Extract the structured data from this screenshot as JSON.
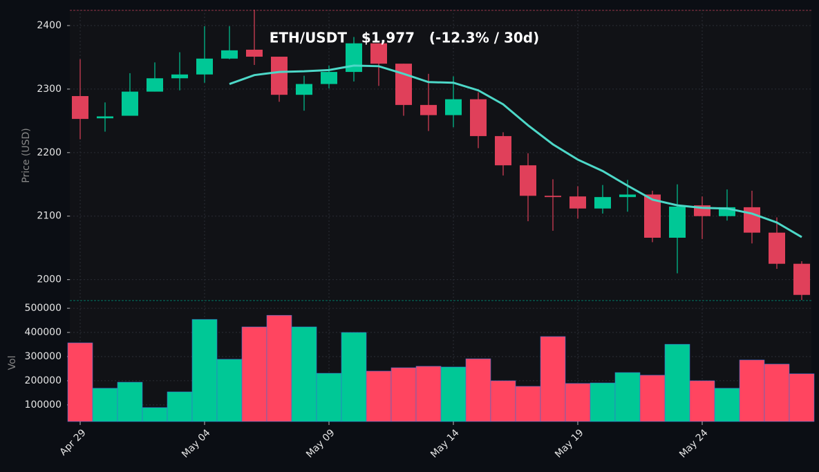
{
  "chart_data": [
    {
      "type": "candlestick",
      "title": "ETH/USDT   $1,977   (-12.3% / 30d)",
      "y_label": "Price (USD)",
      "up_color": "#00c896",
      "down_color": "#e0405a",
      "open": [
        2289,
        2254,
        2258,
        2296,
        2317,
        2323,
        2348,
        2362,
        2351,
        2291,
        2308,
        2327,
        2372,
        2340,
        2275,
        2259,
        2284,
        2226,
        2180,
        2132,
        2131,
        2112,
        2130,
        2134,
        2066,
        2117,
        2100,
        2114,
        2074,
        2025
      ],
      "high": [
        2347,
        2279,
        2325,
        2342,
        2358,
        2399,
        2399,
        2425,
        2351,
        2321,
        2337,
        2382,
        2372,
        2340,
        2324,
        2320,
        2295,
        2232,
        2199,
        2158,
        2147,
        2149,
        2157,
        2140,
        2150,
        2131,
        2142,
        2140,
        2098,
        2029
      ],
      "low": [
        2221,
        2233,
        2258,
        2296,
        2298,
        2310,
        2347,
        2338,
        2280,
        2266,
        2301,
        2312,
        2305,
        2258,
        2234,
        2240,
        2207,
        2164,
        2092,
        2077,
        2096,
        2104,
        2107,
        2059,
        2010,
        2064,
        2093,
        2057,
        2017,
        1968
      ],
      "close": [
        2253,
        2257,
        2296,
        2317,
        2323,
        2348,
        2361,
        2351,
        2291,
        2308,
        2327,
        2372,
        2340,
        2275,
        2259,
        2284,
        2226,
        2180,
        2132,
        2130,
        2112,
        2130,
        2134,
        2066,
        2115,
        2100,
        2114,
        2074,
        2025,
        1976
      ],
      "ma": {
        "color": "#4dd8c8",
        "values": [
          null,
          null,
          null,
          null,
          null,
          null,
          2308,
          2322,
          2327,
          2328,
          2330,
          2337,
          2336,
          2324,
          2311,
          2310,
          2298,
          2276,
          2243,
          2213,
          2189,
          2171,
          2148,
          2126,
          2117,
          2113,
          2112,
          2104,
          2090,
          2067
        ]
      },
      "ylim": [
        1967,
        2425
      ],
      "yticks": [
        2000,
        2100,
        2200,
        2300,
        2400
      ],
      "grid": true
    },
    {
      "type": "bar",
      "y_label": "Vol",
      "categories": [
        "Apr 29",
        null,
        null,
        null,
        null,
        "May 04",
        null,
        null,
        null,
        null,
        "May 09",
        null,
        null,
        null,
        null,
        "May 14",
        null,
        null,
        null,
        null,
        "May 19",
        null,
        null,
        null,
        null,
        "May 24",
        null,
        null,
        null,
        null
      ],
      "values": [
        357000,
        169000,
        194000,
        89000,
        154000,
        454000,
        289000,
        423000,
        471000,
        423000,
        231000,
        400000,
        240000,
        254000,
        260000,
        257000,
        291000,
        200000,
        177000,
        383000,
        189000,
        191000,
        234000,
        223000,
        351000,
        200000,
        169000,
        286000,
        269000,
        229000
      ],
      "up_color": "#00c896",
      "down_color": "#ff4560",
      "ylim": [
        31000,
        526000
      ],
      "yticks": [
        100000,
        200000,
        300000,
        400000,
        500000
      ],
      "grid": true
    }
  ]
}
